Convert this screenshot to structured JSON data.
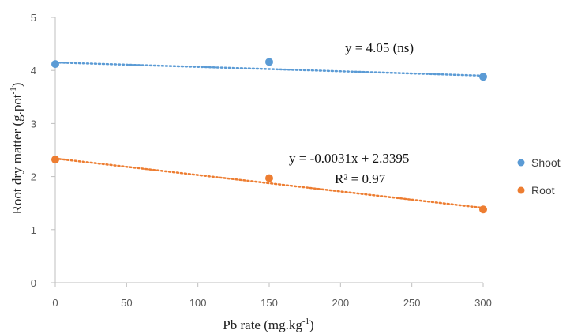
{
  "chart_data": {
    "type": "scatter",
    "xlabel": "Pb rate (mg.kg",
    "xlabel_sup": "-1",
    "xlabel_end": ")",
    "ylabel": "Root dry matter (g.pot",
    "ylabel_sup": "-1",
    "ylabel_end": ")",
    "xlim": [
      0,
      300
    ],
    "ylim": [
      0,
      5
    ],
    "x_ticks": [
      "0",
      "50",
      "100",
      "150",
      "200",
      "250",
      "300"
    ],
    "y_ticks": [
      "0",
      "1",
      "2",
      "3",
      "4",
      "5"
    ],
    "grid": false,
    "legend_position": "right",
    "series": [
      {
        "name": "Shoot",
        "color": "#5b9bd5",
        "x": [
          0,
          150,
          300
        ],
        "y": [
          4.12,
          4.16,
          3.88
        ],
        "trendline": {
          "slope": -0.00083,
          "intercept": 4.15
        }
      },
      {
        "name": "Root",
        "color": "#ed7d31",
        "x": [
          0,
          150,
          300
        ],
        "y": [
          2.32,
          1.97,
          1.38
        ],
        "trendline": {
          "slope": -0.0031,
          "intercept": 2.3395
        }
      }
    ],
    "annotations": [
      {
        "text": "y = 4.05 (ns)"
      },
      {
        "text": "y = -0.0031x + 2.3395"
      },
      {
        "text": "R² = 0.97"
      }
    ]
  }
}
